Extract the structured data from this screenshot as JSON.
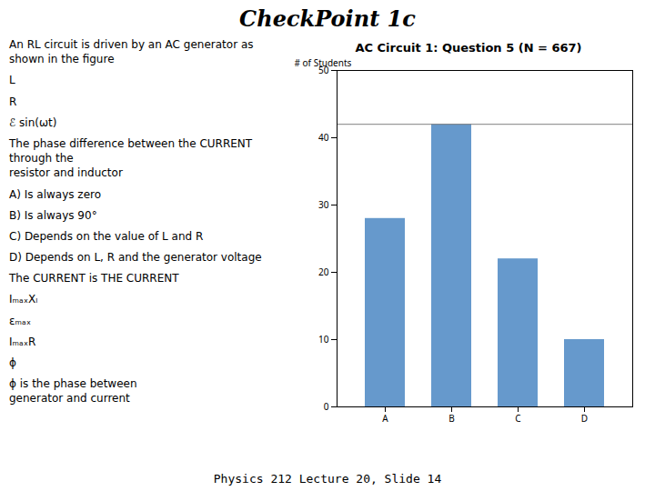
{
  "chart_data": {
    "type": "bar",
    "title": "AC Circuit 1: Question 5 (N = 667)",
    "categories": [
      "A",
      "B",
      "C",
      "D"
    ],
    "values": [
      28,
      42,
      22,
      10
    ],
    "color": "#6699CC",
    "ylabel": "# of Students",
    "ylim": [
      0,
      50
    ],
    "yticks": [
      0,
      10,
      20,
      30,
      40,
      50
    ],
    "annotations": [
      {
        "text": "CheckPoint 1c"
      },
      {
        "text": "An RL circuit is driven by an AC generator as shown in the figure"
      },
      {
        "text": "L"
      },
      {
        "text": "R"
      },
      {
        "text": "ℰ sin(ωt)"
      },
      {
        "text": "The phase difference between the CURRENT through the\nresistor and inductor"
      },
      {
        "text": "A)  Is always zero"
      },
      {
        "text": "B)  Is always 90°"
      },
      {
        "text": "C)  Depends on the value of L and R"
      },
      {
        "text": "D)  Depends on L, R and the generator voltage"
      },
      {
        "text": "The CURRENT is THE CURRENT"
      },
      {
        "text": "IₘₐₓXₗ"
      },
      {
        "text": "εₘₐₓ"
      },
      {
        "text": "IₘₐₓR"
      },
      {
        "text": "ϕ"
      },
      {
        "text": "ϕ is the phase between\ngenerator and current"
      },
      {
        "text": "Physics 212  Lecture 20, Slide 14"
      },
      {
        "y": 42
      }
    ]
  }
}
